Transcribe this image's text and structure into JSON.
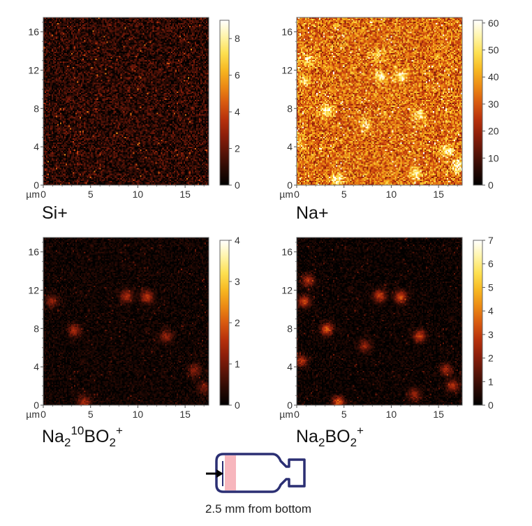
{
  "colors": {
    "colormap": [
      "#000000",
      "#2a0a04",
      "#5a1408",
      "#8c1e0a",
      "#b8320c",
      "#d85a10",
      "#ec8a14",
      "#f7b822",
      "#fde050",
      "#fff4a8",
      "#ffffff"
    ],
    "vial_outline": "#2b2f73",
    "vial_band": "#f07a86",
    "arrow": "#000000"
  },
  "chart_data": [
    {
      "type": "heatmap",
      "label": "Si+",
      "x_unit": "µm",
      "xlim": [
        0,
        17.5
      ],
      "ylim": [
        0,
        17.5
      ],
      "x_ticks": [
        0,
        5,
        10,
        15
      ],
      "y_ticks": [
        0,
        4,
        8,
        12,
        16
      ],
      "colorbar": {
        "min": 0,
        "max": 9,
        "ticks": [
          0,
          2,
          4,
          6,
          8
        ]
      },
      "background_level": 0.9,
      "noise_level": 1.2,
      "hotspots": []
    },
    {
      "type": "heatmap",
      "label": "Na+",
      "x_unit": "µm",
      "xlim": [
        0,
        17.5
      ],
      "ylim": [
        0,
        17.5
      ],
      "x_ticks": [
        0,
        5,
        10,
        15
      ],
      "y_ticks": [
        0,
        4,
        8,
        12,
        16
      ],
      "colorbar": {
        "min": 0,
        "max": 61,
        "ticks": [
          0,
          10,
          20,
          30,
          40,
          50,
          60
        ]
      },
      "background_level": 33,
      "noise_level": 12,
      "hotspots": [
        {
          "x": 1.2,
          "y": 13.0,
          "value": 52
        },
        {
          "x": 0.8,
          "y": 10.8,
          "value": 50
        },
        {
          "x": 3.2,
          "y": 7.8,
          "value": 58
        },
        {
          "x": 4.3,
          "y": 0.5,
          "value": 55
        },
        {
          "x": 8.8,
          "y": 11.3,
          "value": 55
        },
        {
          "x": 11.0,
          "y": 11.3,
          "value": 55
        },
        {
          "x": 8.5,
          "y": 13.5,
          "value": 48
        },
        {
          "x": 7.2,
          "y": 6.2,
          "value": 50
        },
        {
          "x": 13.0,
          "y": 7.2,
          "value": 52
        },
        {
          "x": 12.5,
          "y": 1.2,
          "value": 52
        },
        {
          "x": 15.8,
          "y": 3.6,
          "value": 56
        },
        {
          "x": 17.0,
          "y": 2.0,
          "value": 58
        },
        {
          "x": 0.3,
          "y": 4.5,
          "value": 48
        }
      ]
    },
    {
      "type": "heatmap",
      "label_base": "Na",
      "label_sub": "2",
      "label_sup_mid": "10",
      "label_mid": "BO",
      "label_sub2": "2",
      "label_sup": "+",
      "x_unit": "µm",
      "xlim": [
        0,
        17.5
      ],
      "ylim": [
        0,
        17.5
      ],
      "x_ticks": [
        0,
        5,
        10,
        15
      ],
      "y_ticks": [
        0,
        4,
        8,
        12,
        16
      ],
      "colorbar": {
        "min": 0,
        "max": 4,
        "ticks": [
          0,
          1,
          2,
          3,
          4
        ]
      },
      "background_level": 0.15,
      "noise_level": 0.25,
      "hotspots": [
        {
          "x": 0.9,
          "y": 10.8,
          "value": 1.2
        },
        {
          "x": 3.3,
          "y": 7.8,
          "value": 1.4
        },
        {
          "x": 8.8,
          "y": 11.4,
          "value": 1.5
        },
        {
          "x": 11.0,
          "y": 11.3,
          "value": 1.6
        },
        {
          "x": 4.3,
          "y": 0.3,
          "value": 1.4
        },
        {
          "x": 13.0,
          "y": 7.2,
          "value": 1.2
        },
        {
          "x": 16.0,
          "y": 3.6,
          "value": 1.2
        },
        {
          "x": 17.0,
          "y": 1.8,
          "value": 1.0
        }
      ]
    },
    {
      "type": "heatmap",
      "label_base": "Na",
      "label_sub": "2",
      "label_mid": "BO",
      "label_sub2": "2",
      "label_sup": "+",
      "x_unit": "µm",
      "xlim": [
        0,
        17.5
      ],
      "ylim": [
        0,
        17.5
      ],
      "x_ticks": [
        0,
        5,
        10,
        15
      ],
      "y_ticks": [
        0,
        4,
        8,
        12,
        16
      ],
      "colorbar": {
        "min": 0,
        "max": 7,
        "ticks": [
          0,
          1,
          2,
          3,
          4,
          5,
          6,
          7
        ]
      },
      "background_level": 0.2,
      "noise_level": 0.45,
      "hotspots": [
        {
          "x": 0.8,
          "y": 10.8,
          "value": 3.0
        },
        {
          "x": 1.2,
          "y": 13.0,
          "value": 2.6
        },
        {
          "x": 3.2,
          "y": 7.9,
          "value": 3.4
        },
        {
          "x": 8.8,
          "y": 11.4,
          "value": 3.0
        },
        {
          "x": 11.0,
          "y": 11.3,
          "value": 3.2
        },
        {
          "x": 4.4,
          "y": 0.3,
          "value": 3.4
        },
        {
          "x": 13.0,
          "y": 7.2,
          "value": 2.8
        },
        {
          "x": 0.5,
          "y": 4.6,
          "value": 2.6
        },
        {
          "x": 7.2,
          "y": 6.2,
          "value": 2.2
        },
        {
          "x": 16.5,
          "y": 2.0,
          "value": 2.6
        },
        {
          "x": 15.8,
          "y": 3.7,
          "value": 2.4
        },
        {
          "x": 12.5,
          "y": 1.1,
          "value": 2.2
        }
      ]
    }
  ],
  "caption": "2.5 mm from bottom"
}
